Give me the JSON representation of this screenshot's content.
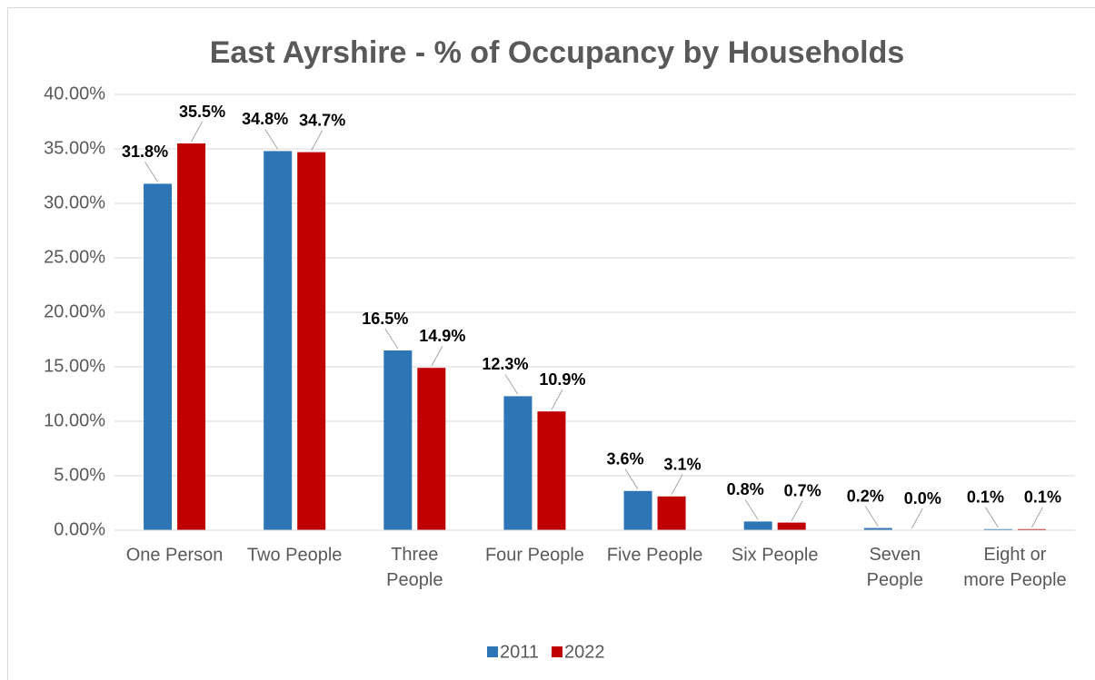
{
  "chart_data": {
    "type": "bar",
    "title": "East Ayrshire - % of Occupancy by Households",
    "categories": [
      "One Person",
      "Two People",
      "Three People",
      "Four People",
      "Five People",
      "Six People",
      "Seven People",
      "Eight or more People"
    ],
    "series": [
      {
        "name": "2011",
        "color": "#2e75b6",
        "values": [
          31.8,
          34.8,
          16.5,
          12.3,
          3.6,
          0.8,
          0.2,
          0.1
        ],
        "value_labels": [
          "31.8%",
          "34.8%",
          "16.5%",
          "12.3%",
          "3.6%",
          "0.8%",
          "0.2%",
          "0.1%"
        ]
      },
      {
        "name": "2022",
        "color": "#c00000",
        "values": [
          35.5,
          34.7,
          14.9,
          10.9,
          3.1,
          0.7,
          0.0,
          0.1
        ],
        "value_labels": [
          "35.5%",
          "34.7%",
          "14.9%",
          "10.9%",
          "3.1%",
          "0.7%",
          "0.0%",
          "0.1%"
        ]
      }
    ],
    "ylim": [
      0,
      40
    ],
    "yticks": [
      {
        "value": 0,
        "label": "0.00%"
      },
      {
        "value": 5,
        "label": "5.00%"
      },
      {
        "value": 10,
        "label": "10.00%"
      },
      {
        "value": 15,
        "label": "15.00%"
      },
      {
        "value": 20,
        "label": "20.00%"
      },
      {
        "value": 25,
        "label": "25.00%"
      },
      {
        "value": 30,
        "label": "30.00%"
      },
      {
        "value": 35,
        "label": "35.00%"
      },
      {
        "value": 40,
        "label": "40.00%"
      }
    ],
    "grid": true,
    "legend": "bottom"
  }
}
